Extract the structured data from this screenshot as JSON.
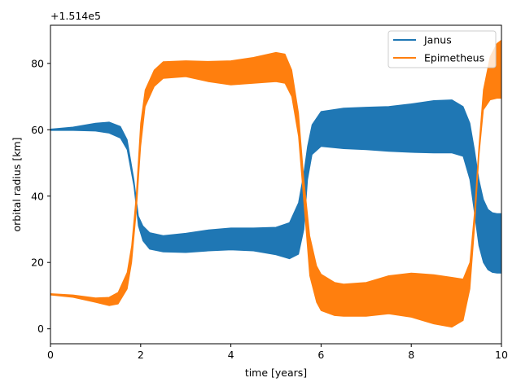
{
  "chart_data": {
    "type": "area",
    "title": "",
    "xlabel": "time [years]",
    "ylabel": "orbital radius [km]",
    "offset_label": "+1.514e5",
    "xlim": [
      0,
      10
    ],
    "ylim": [
      -4.5,
      91.5
    ],
    "xticks": [
      0,
      2,
      4,
      6,
      8,
      10
    ],
    "yticks": [
      0,
      20,
      40,
      60,
      80
    ],
    "grid": false,
    "legend_position": "top-right",
    "colors": {
      "Janus": "#1f77b4",
      "Epimetheus": "#ff7f0e"
    },
    "series": [
      {
        "name": "Janus",
        "x": [
          0,
          0.5,
          1.0,
          1.3,
          1.55,
          1.7,
          1.85,
          1.95,
          2.05,
          2.2,
          2.5,
          3.0,
          3.5,
          4.0,
          4.5,
          5.0,
          5.3,
          5.5,
          5.62,
          5.7,
          5.8,
          6.0,
          6.5,
          7.0,
          7.5,
          8.0,
          8.5,
          8.9,
          9.15,
          9.3,
          9.4,
          9.5,
          9.6,
          9.7,
          9.8,
          9.9,
          10.0
        ],
        "upper": [
          60.2,
          60.8,
          62.0,
          62.3,
          61.0,
          57.0,
          45.0,
          34.0,
          31.0,
          29.0,
          28.1,
          28.8,
          29.8,
          30.4,
          30.4,
          30.6,
          32.0,
          38.0,
          47.0,
          55.0,
          61.5,
          65.5,
          66.5,
          66.8,
          67.0,
          67.8,
          68.8,
          69.0,
          67.0,
          62.0,
          54.0,
          45.0,
          39.0,
          36.0,
          35.0,
          34.7,
          34.7
        ],
        "lower": [
          59.8,
          59.8,
          59.6,
          59.0,
          57.5,
          54.0,
          43.0,
          31.0,
          26.5,
          24.0,
          23.2,
          23.0,
          23.5,
          23.8,
          23.5,
          22.3,
          21.1,
          22.5,
          30.0,
          45.0,
          52.5,
          55.0,
          54.3,
          54.0,
          53.5,
          53.2,
          53.0,
          53.0,
          52.0,
          45.0,
          35.0,
          25.0,
          20.0,
          17.8,
          17.0,
          16.8,
          16.8
        ]
      },
      {
        "name": "Epimetheus",
        "x": [
          0,
          0.5,
          1.0,
          1.3,
          1.5,
          1.7,
          1.8,
          1.9,
          2.0,
          2.1,
          2.3,
          2.5,
          3.0,
          3.5,
          4.0,
          4.5,
          5.0,
          5.2,
          5.35,
          5.5,
          5.62,
          5.75,
          5.9,
          6.0,
          6.3,
          6.5,
          7.0,
          7.5,
          8.0,
          8.5,
          8.9,
          9.15,
          9.3,
          9.4,
          9.5,
          9.6,
          9.75,
          9.9,
          10.0
        ],
        "upper": [
          10.6,
          10.2,
          9.3,
          9.5,
          11.0,
          17.0,
          25.0,
          40.0,
          62.0,
          72.0,
          78.0,
          80.5,
          80.8,
          80.6,
          80.8,
          81.8,
          83.3,
          82.8,
          78.0,
          65.0,
          45.0,
          28.0,
          19.0,
          16.5,
          14.0,
          13.5,
          14.0,
          16.0,
          16.8,
          16.3,
          15.5,
          15.0,
          20.0,
          35.0,
          55.0,
          72.0,
          82.0,
          86.0,
          87.0
        ],
        "lower": [
          10.2,
          9.5,
          8.0,
          7.0,
          7.5,
          12.0,
          20.0,
          35.0,
          55.0,
          67.0,
          73.0,
          75.5,
          76.0,
          74.5,
          73.5,
          74.0,
          74.5,
          74.0,
          70.0,
          58.0,
          38.0,
          16.0,
          8.0,
          5.5,
          4.0,
          3.8,
          3.8,
          4.5,
          3.5,
          1.5,
          0.5,
          2.5,
          12.0,
          30.0,
          52.0,
          66.0,
          69.0,
          69.5,
          69.5
        ]
      }
    ]
  }
}
